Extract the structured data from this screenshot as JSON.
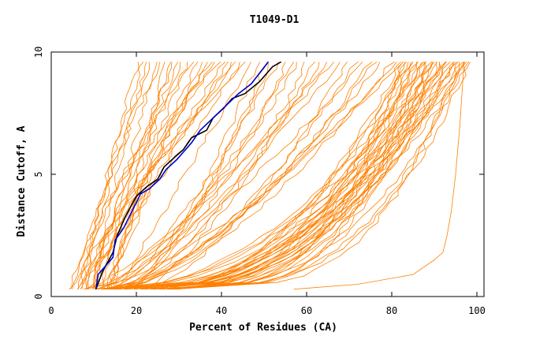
{
  "chart_data": {
    "type": "line",
    "title": "T1049-D1",
    "xlabel": "Percent of Residues (CA)",
    "ylabel": "Distance Cutoff, A",
    "xlim": [
      0,
      100
    ],
    "ylim": [
      0,
      10
    ],
    "xticks": [
      "0",
      "20",
      "40",
      "60",
      "80",
      "100"
    ],
    "yticks": [
      "0",
      "5",
      "10"
    ],
    "colors": {
      "bundle": "#ff8000",
      "highlight_black": "#000000",
      "highlight_blue": "#0000cc"
    },
    "series": [
      {
        "color": "black",
        "points": [
          [
            10.5,
            0.3
          ],
          [
            12,
            1.0
          ],
          [
            14.5,
            1.8
          ],
          [
            15.5,
            2.5
          ],
          [
            17.5,
            3.3
          ],
          [
            20,
            4.1
          ],
          [
            22.5,
            4.5
          ],
          [
            25,
            4.8
          ],
          [
            26.5,
            5.3
          ],
          [
            29,
            5.7
          ],
          [
            31,
            6.0
          ],
          [
            33,
            6.5
          ],
          [
            36.5,
            6.8
          ],
          [
            38,
            7.3
          ],
          [
            40.5,
            7.7
          ],
          [
            42.5,
            8.1
          ],
          [
            45.5,
            8.3
          ],
          [
            49,
            8.8
          ],
          [
            52,
            9.4
          ],
          [
            54,
            9.6
          ]
        ]
      },
      {
        "color": "blue",
        "points": [
          [
            10.5,
            0.3
          ],
          [
            11,
            0.9
          ],
          [
            13,
            1.3
          ],
          [
            14.5,
            1.6
          ],
          [
            15,
            2.3
          ],
          [
            17,
            2.8
          ],
          [
            19,
            3.5
          ],
          [
            21,
            4.2
          ],
          [
            23,
            4.4
          ],
          [
            25.5,
            4.8
          ],
          [
            27,
            5.2
          ],
          [
            29.5,
            5.6
          ],
          [
            31,
            5.9
          ],
          [
            33,
            6.3
          ],
          [
            35,
            6.8
          ],
          [
            38,
            7.3
          ],
          [
            41,
            7.8
          ],
          [
            44,
            8.3
          ],
          [
            47,
            8.7
          ],
          [
            51,
            9.6
          ]
        ]
      }
    ],
    "bundle_groups": [
      {
        "name": "steep-left",
        "start_x": [
          4,
          16
        ],
        "end_x": [
          20,
          48
        ],
        "count": 26
      },
      {
        "name": "middle",
        "start_x": [
          8,
          22
        ],
        "end_x": [
          48,
          84
        ],
        "count": 22
      },
      {
        "name": "shallow-right",
        "start_x": [
          10,
          30
        ],
        "end_x": [
          82,
          99
        ],
        "count": 40
      },
      {
        "name": "outlier",
        "points": [
          [
            57,
            0.3
          ],
          [
            72,
            0.5
          ],
          [
            85,
            0.9
          ],
          [
            90,
            1.5
          ],
          [
            92,
            1.8
          ],
          [
            93,
            2.5
          ],
          [
            94,
            3.5
          ],
          [
            95,
            5
          ],
          [
            96,
            7
          ],
          [
            97,
            9.6
          ]
        ]
      }
    ]
  }
}
